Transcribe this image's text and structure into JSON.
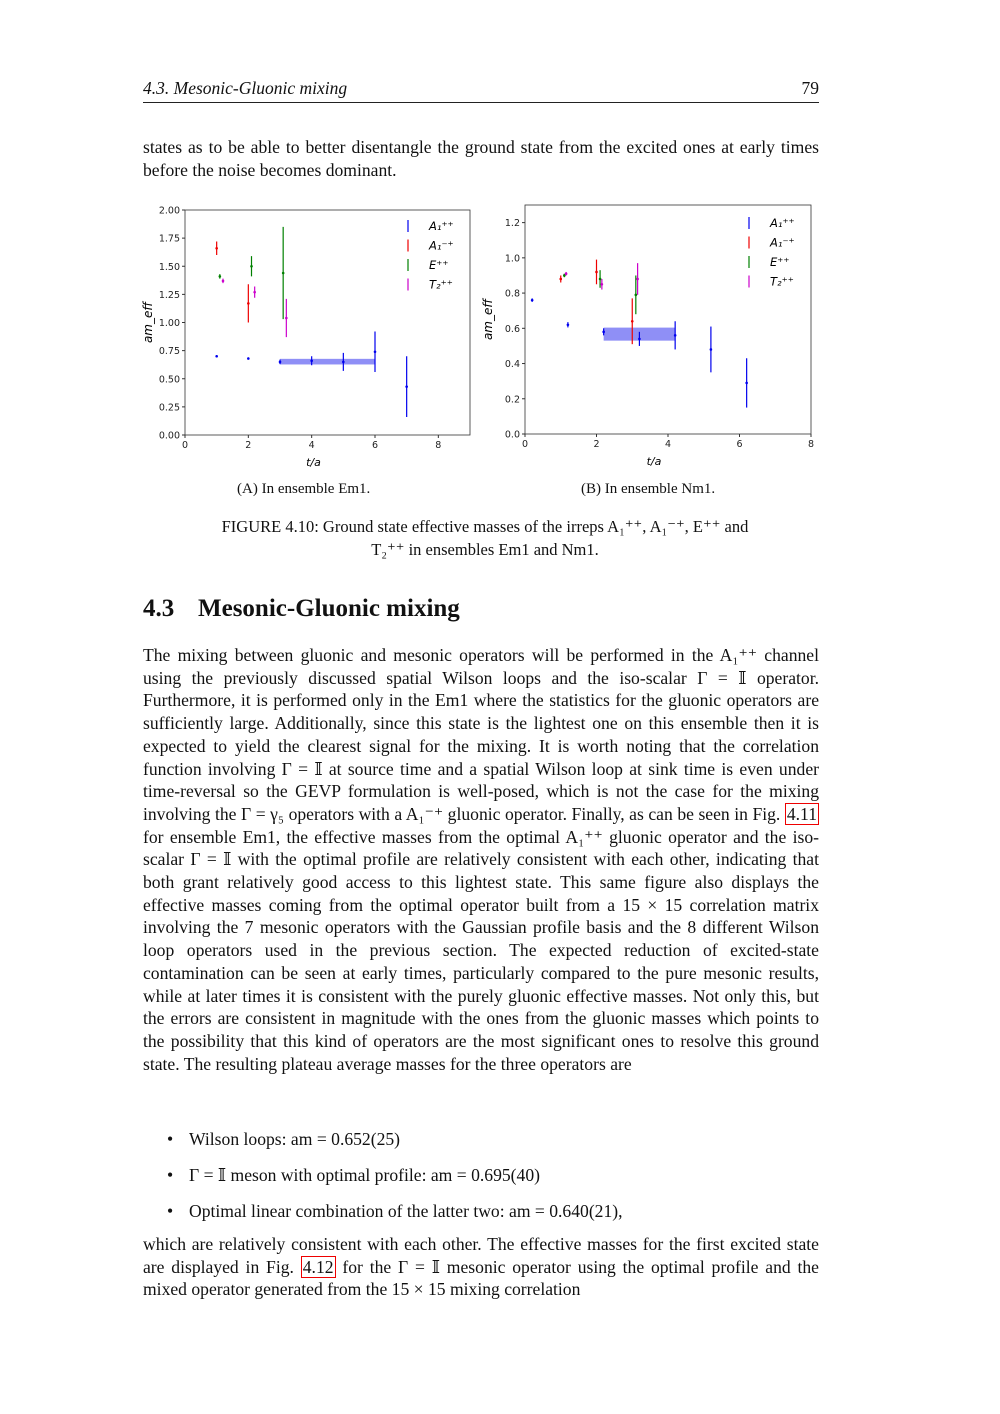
{
  "header": {
    "section": "4.3. Mesonic-Gluonic mixing",
    "page_number": "79"
  },
  "intro_paragraph": "states as to be able to better disentangle the ground state from the excited ones at early times before the noise becomes dominant.",
  "figure": {
    "subcaption_a": "(A) In ensemble Em1.",
    "subcaption_b": "(B) In ensemble Nm1.",
    "caption_label": "FIGURE 4.10:",
    "caption_text": "Ground state effective masses of the irreps A₁⁺⁺, A₁⁻⁺, E⁺⁺ and T₂⁺⁺ in ensembles Em1 and Nm1."
  },
  "chart_data": [
    {
      "type": "scatter",
      "subplot": "A",
      "xlabel": "t/a",
      "ylabel": "am_eff",
      "xlim": [
        0,
        9
      ],
      "ylim": [
        0,
        2
      ],
      "xticks": [
        "0",
        "2",
        "4",
        "6",
        "8"
      ],
      "yticks": [
        "0.00",
        "0.25",
        "0.50",
        "0.75",
        "1.00",
        "1.25",
        "1.50",
        "1.75",
        "2.00"
      ],
      "legend": "top-right",
      "series": [
        {
          "name": "A₁⁺⁺",
          "color": "#0000ee",
          "points": [
            [
              1,
              0.7,
              0.01
            ],
            [
              2,
              0.68,
              0.01
            ],
            [
              3,
              0.65,
              0.02
            ],
            [
              4,
              0.66,
              0.04
            ],
            [
              5,
              0.65,
              0.08
            ],
            [
              6,
              0.74,
              0.18
            ],
            [
              7,
              0.43,
              0.27
            ]
          ]
        },
        {
          "name": "A₁⁻⁺",
          "color": "#ee0000",
          "points": [
            [
              1,
              1.66,
              0.06
            ],
            [
              2,
              1.17,
              0.17
            ]
          ]
        },
        {
          "name": "E⁺⁺",
          "color": "#008000",
          "points": [
            [
              1.1,
              1.41,
              0.02
            ],
            [
              2.1,
              1.5,
              0.09
            ],
            [
              3.1,
              1.44,
              0.41
            ]
          ]
        },
        {
          "name": "T₂⁺⁺",
          "color": "#cc00cc",
          "points": [
            [
              1.2,
              1.37,
              0.02
            ],
            [
              2.2,
              1.27,
              0.05
            ],
            [
              3.2,
              1.04,
              0.17
            ]
          ]
        }
      ],
      "band": {
        "x": [
          3,
          6
        ],
        "y": 0.652,
        "err": 0.025,
        "color": "#3333ee"
      }
    },
    {
      "type": "scatter",
      "subplot": "B",
      "xlabel": "t/a",
      "ylabel": "am_eff",
      "xlim": [
        0,
        8
      ],
      "ylim": [
        0,
        1.3
      ],
      "xticks": [
        "0",
        "2",
        "4",
        "6",
        "8"
      ],
      "yticks": [
        "0.0",
        "0.2",
        "0.4",
        "0.6",
        "0.8",
        "1.0",
        "1.2"
      ],
      "legend": "top-right",
      "series": [
        {
          "name": "A₁⁺⁺",
          "color": "#0000ee",
          "points": [
            [
              0.2,
              0.76,
              0.01
            ],
            [
              1.2,
              0.62,
              0.015
            ],
            [
              2.2,
              0.58,
              0.02
            ],
            [
              3.2,
              0.54,
              0.04
            ],
            [
              4.2,
              0.56,
              0.08
            ],
            [
              5.2,
              0.48,
              0.13
            ],
            [
              6.2,
              0.29,
              0.14
            ]
          ]
        },
        {
          "name": "A₁⁻⁺",
          "color": "#ee0000",
          "points": [
            [
              1.0,
              0.88,
              0.02
            ],
            [
              2.0,
              0.92,
              0.07
            ],
            [
              3.0,
              0.64,
              0.13
            ]
          ]
        },
        {
          "name": "E⁺⁺",
          "color": "#008000",
          "points": [
            [
              1.1,
              0.9,
              0.01
            ],
            [
              2.1,
              0.88,
              0.05
            ],
            [
              3.1,
              0.79,
              0.11
            ]
          ]
        },
        {
          "name": "T₂⁺⁺",
          "color": "#cc00cc",
          "points": [
            [
              1.15,
              0.91,
              0.01
            ],
            [
              2.15,
              0.85,
              0.03
            ],
            [
              3.15,
              0.88,
              0.09
            ]
          ]
        }
      ],
      "band": {
        "x": [
          2.2,
          4.2
        ],
        "y": 0.567,
        "err": 0.037,
        "color": "#3333ee"
      }
    }
  ],
  "section": {
    "number": "4.3",
    "title": "Mesonic-Gluonic mixing"
  },
  "body": {
    "part1": "The mixing between gluonic and mesonic operators will be performed in the A₁⁺⁺ channel using the previously discussed spatial Wilson loops and the iso-scalar Γ = 𝕀 operator. Furthermore, it is performed only in the Em1 where the statistics for the gluonic operators are sufficiently large. Additionally, since this state is the lightest one on this ensemble then it is expected to yield the clearest signal for the mixing. It is worth noting that the correlation function involving Γ = 𝕀 at source time and a spatial Wilson loop at sink time is even under time-reversal so the GEVP formulation is well-posed, which is not the case for the mixing involving the Γ = γ₅ operators with a A₁⁻⁺ gluonic operator. Finally, as can be seen in Fig. ",
    "ref1": "4.11",
    "part2": " for ensemble Em1, the effective masses from the optimal A₁⁺⁺ gluonic operator and the iso-scalar Γ = 𝕀 with the optimal profile are relatively consistent with each other, indicating that both grant relatively good access to this lightest state. This same figure also displays the effective masses coming from the optimal operator built from a 15 × 15 correlation matrix involving the 7 mesonic operators with the Gaussian profile basis and the 8 different Wilson loop operators used in the previous section. The expected reduction of excited-state contamination can be seen at early times, particularly compared to the pure mesonic results, while at later times it is consistent with the purely gluonic effective masses. Not only this, but the errors are consistent in magnitude with the ones from the gluonic masses which points to the possibility that this kind of operators are the most significant ones to resolve this ground state. The resulting plateau average masses for the three operators are"
  },
  "bullets": [
    "Wilson loops: am = 0.652(25)",
    "Γ = 𝕀 meson with optimal profile: am = 0.695(40)",
    "Optimal linear combination of the latter two: am = 0.640(21),"
  ],
  "closing": {
    "part1": "which are relatively consistent with each other. The effective masses for the first excited state are displayed in Fig. ",
    "ref": "4.12",
    "part2": " for the Γ = 𝕀 mesonic operator using the optimal profile and the mixed operator generated from the 15 × 15 mixing correlation"
  }
}
